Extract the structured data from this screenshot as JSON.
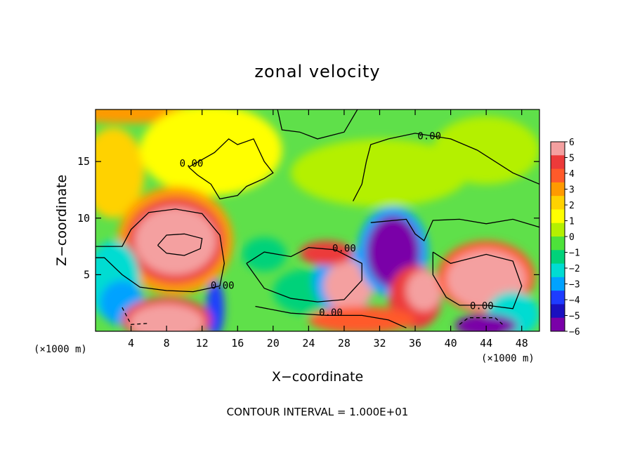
{
  "chart_data": {
    "type": "heatmap",
    "title": "zonal velocity",
    "xlabel": "X−coordinate",
    "ylabel": "Z−coordinate",
    "x_unit_label": "(×1000 m)",
    "note": "CONTOUR INTERVAL = 1.000E+01",
    "xlim": [
      0,
      50
    ],
    "ylim": [
      0,
      19.6
    ],
    "x_ticks": [
      4,
      8,
      12,
      16,
      20,
      24,
      28,
      32,
      36,
      40,
      44,
      48
    ],
    "y_ticks": [
      5,
      10,
      15
    ],
    "colorbar": {
      "levels": [
        6,
        5,
        4,
        3,
        2,
        1,
        0,
        -1,
        -2,
        -3,
        -4,
        -5,
        -6
      ],
      "colors": [
        "#f4a0a0",
        "#ec3a3a",
        "#ff5a2a",
        "#ff9a00",
        "#ffd200",
        "#ffff00",
        "#b4f000",
        "#4de23a",
        "#00d27a",
        "#00dcd2",
        "#00a2ff",
        "#1e3cff",
        "#1a10c0",
        "#7a00a8"
      ]
    },
    "contour_labels": [
      {
        "text": "0.00",
        "x": 10.8,
        "z": 14.8
      },
      {
        "text": "0.00",
        "x": 37.6,
        "z": 17.2
      },
      {
        "text": "0.00",
        "x": 28.0,
        "z": 7.3
      },
      {
        "text": "0.00",
        "x": 14.3,
        "z": 4.0
      },
      {
        "text": "0.00",
        "x": 26.5,
        "z": 1.6
      },
      {
        "text": "0.00",
        "x": 43.5,
        "z": 2.2
      }
    ],
    "features": [
      {
        "kind": "max",
        "x": 9.0,
        "z": 7.8,
        "value": "> 6"
      },
      {
        "kind": "min",
        "x": 33.5,
        "z": 7.0,
        "value": "< -6"
      },
      {
        "kind": "max",
        "x": 28.5,
        "z": 3.8,
        "value": "> 6"
      },
      {
        "kind": "max",
        "x": 44.0,
        "z": 4.5,
        "value": "> 6"
      },
      {
        "kind": "max",
        "x": 8.0,
        "z": 1.0,
        "value": "> 6"
      },
      {
        "kind": "min",
        "x": 44.0,
        "z": 0.6,
        "value": "< -6"
      }
    ]
  }
}
